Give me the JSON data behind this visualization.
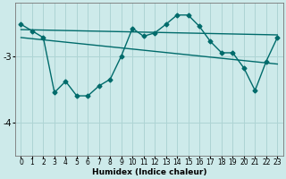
{
  "xlabel": "Humidex (Indice chaleur)",
  "bg_color": "#cdeaea",
  "line_color": "#006b6b",
  "grid_color": "#aed4d4",
  "xlim": [
    -0.5,
    23.5
  ],
  "ylim": [
    -4.5,
    -2.2
  ],
  "yticks": [
    -4,
    -3
  ],
  "xticks": [
    0,
    1,
    2,
    3,
    4,
    5,
    6,
    7,
    8,
    9,
    10,
    11,
    12,
    13,
    14,
    15,
    16,
    17,
    18,
    19,
    20,
    21,
    22,
    23
  ],
  "line1_x": [
    0,
    1,
    2,
    3,
    4,
    5,
    6,
    7,
    8,
    9,
    10,
    11,
    12,
    13,
    14,
    15,
    16,
    17,
    18,
    19,
    20,
    21,
    22,
    23
  ],
  "line1_y": [
    -2.52,
    -2.62,
    -2.72,
    -3.55,
    -3.38,
    -3.6,
    -3.6,
    -3.45,
    -3.35,
    -3.0,
    -2.58,
    -2.7,
    -2.65,
    -2.52,
    -2.38,
    -2.38,
    -2.55,
    -2.78,
    -2.95,
    -2.95,
    -3.18,
    -3.52,
    -3.08,
    -2.72
  ],
  "line2_x": [
    0,
    23
  ],
  "line2_y": [
    -2.6,
    -2.68
  ],
  "line3_x": [
    0,
    23
  ],
  "line3_y": [
    -2.72,
    -3.12
  ],
  "markersize": 2.5,
  "linewidth": 1.0
}
